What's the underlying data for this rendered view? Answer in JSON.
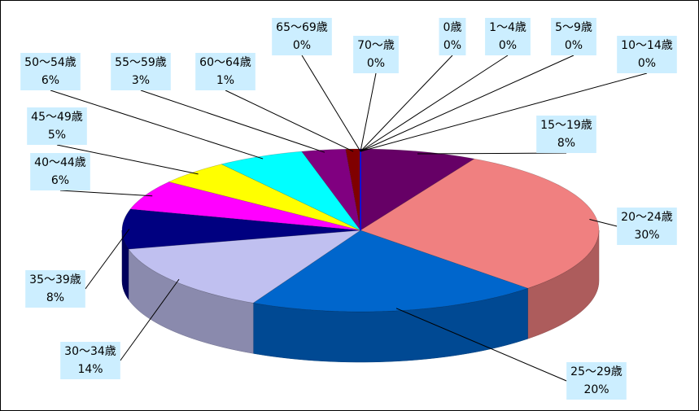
{
  "chart_data": {
    "type": "pie",
    "categories": [
      "0歳",
      "1〜4歳",
      "5〜9歳",
      "10〜14歳",
      "15〜19歳",
      "20〜24歳",
      "25〜29歳",
      "30〜34歳",
      "35〜39歳",
      "40〜44歳",
      "45〜49歳",
      "50〜54歳",
      "55〜59歳",
      "60〜64歳",
      "65〜69歳",
      "70〜歳"
    ],
    "values": [
      0,
      0,
      0,
      0,
      8,
      30,
      20,
      14,
      8,
      6,
      5,
      6,
      3,
      1,
      0,
      0
    ],
    "value_labels": [
      "0%",
      "0%",
      "0%",
      "0%",
      "8%",
      "30%",
      "20%",
      "14%",
      "8%",
      "6%",
      "5%",
      "6%",
      "3%",
      "1%",
      "0%",
      "0%"
    ],
    "colors": [
      "#0033cc",
      "#3366ff",
      "#6699ff",
      "#00ccff",
      "#660066",
      "#f08080",
      "#0066cc",
      "#c0c0f0",
      "#000080",
      "#ff00ff",
      "#ffff00",
      "#00ffff",
      "#800080",
      "#800000",
      "#008080",
      "#0000ff"
    ]
  }
}
